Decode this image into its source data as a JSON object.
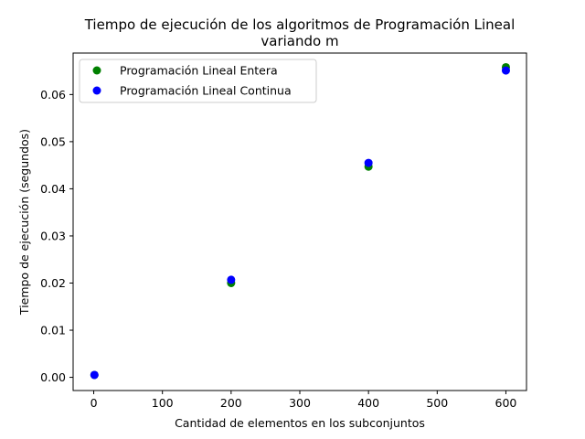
{
  "chart_data": {
    "type": "scatter",
    "title_line1": "Tiempo de ejecución de los algoritmos de Programación Lineal",
    "title_line2": "variando m",
    "xlabel": "Cantidad de elementos en los subconjuntos",
    "ylabel": "Tiempo de ejecución (segundos)",
    "xlim": [
      -30,
      630
    ],
    "ylim": [
      -0.0028,
      0.0688
    ],
    "xticks": [
      0,
      100,
      200,
      300,
      400,
      500,
      600
    ],
    "xtick_labels": [
      "0",
      "100",
      "200",
      "300",
      "400",
      "500",
      "600"
    ],
    "yticks": [
      0.0,
      0.01,
      0.02,
      0.03,
      0.04,
      0.05,
      0.06
    ],
    "ytick_labels": [
      "0.00",
      "0.01",
      "0.02",
      "0.03",
      "0.04",
      "0.05",
      "0.06"
    ],
    "grid": false,
    "legend_position": "top-left",
    "series": [
      {
        "name": "Programación Lineal Entera",
        "color": "#008000",
        "points": [
          {
            "x": 1,
            "y": 0.0005
          },
          {
            "x": 200,
            "y": 0.02
          },
          {
            "x": 400,
            "y": 0.0447
          },
          {
            "x": 600,
            "y": 0.0658
          }
        ]
      },
      {
        "name": "Programación Lineal Continua",
        "color": "#0000ff",
        "points": [
          {
            "x": 1,
            "y": 0.0005
          },
          {
            "x": 200,
            "y": 0.0207
          },
          {
            "x": 400,
            "y": 0.0455
          },
          {
            "x": 600,
            "y": 0.0651
          }
        ]
      }
    ]
  }
}
